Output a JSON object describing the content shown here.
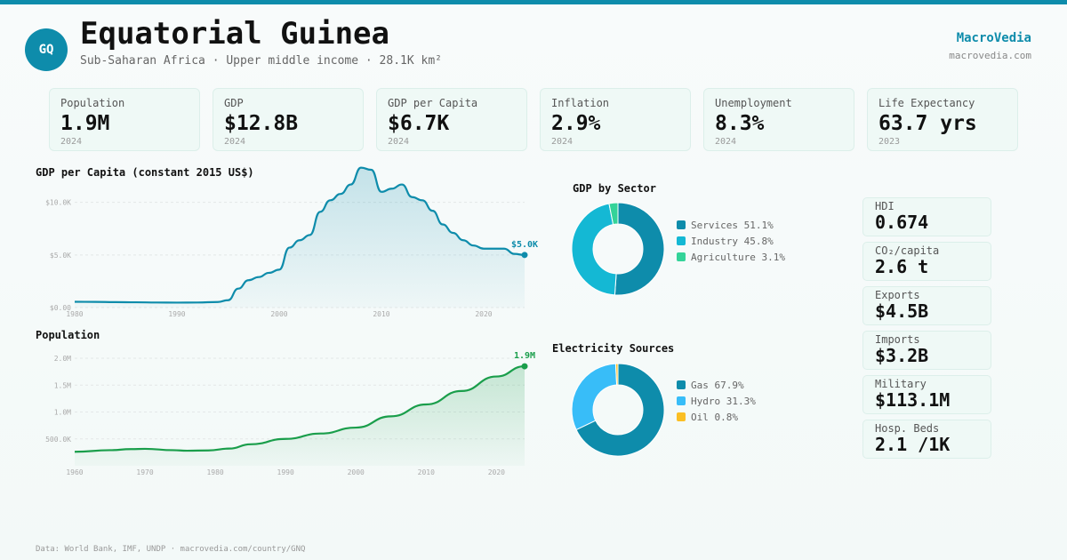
{
  "header": {
    "badge": "GQ",
    "title": "Equatorial Guinea",
    "subtitle": "Sub-Saharan Africa · Upper middle income · 28.1K km²",
    "brand": "MacroVedia",
    "brand_url": "macrovedia.com"
  },
  "kpis": [
    {
      "label": "Population",
      "value": "1.9M",
      "year": "2024"
    },
    {
      "label": "GDP",
      "value": "$12.8B",
      "year": "2024"
    },
    {
      "label": "GDP per Capita",
      "value": "$6.7K",
      "year": "2024"
    },
    {
      "label": "Inflation",
      "value": "2.9%",
      "year": "2024"
    },
    {
      "label": "Unemployment",
      "value": "8.3%",
      "year": "2024"
    },
    {
      "label": "Life Expectancy",
      "value": "63.7 yrs",
      "year": "2023"
    }
  ],
  "side_stats": [
    {
      "label": "HDI",
      "value": "0.674"
    },
    {
      "label": "CO₂/capita",
      "value": "2.6 t"
    },
    {
      "label": "Exports",
      "value": "$4.5B"
    },
    {
      "label": "Imports",
      "value": "$3.2B"
    },
    {
      "label": "Military",
      "value": "$113.1M"
    },
    {
      "label": "Hosp. Beds",
      "value": "2.1 /1K"
    }
  ],
  "colors": {
    "accent": "#0e8cab",
    "population": "#1a9e4b"
  },
  "footer": "Data: World Bank, IMF, UNDP · macrovedia.com/country/GNQ",
  "chart_data": [
    {
      "type": "area",
      "title": "GDP per Capita (constant 2015 US$)",
      "ylim": [
        0,
        12000
      ],
      "yticks": [
        0,
        5000,
        10000
      ],
      "ytick_labels": [
        "$0.00",
        "$5.0K",
        "$10.0K"
      ],
      "xlim": [
        1980,
        2024
      ],
      "xticks": [
        1980,
        1990,
        2000,
        2010,
        2020
      ],
      "end_label": "$5.0K",
      "color": "#0e8cab",
      "grid": true,
      "x": [
        1980,
        1982,
        1984,
        1986,
        1988,
        1990,
        1992,
        1994,
        1995,
        1996,
        1997,
        1998,
        1999,
        2000,
        2001,
        2002,
        2003,
        2004,
        2005,
        2006,
        2007,
        2008,
        2009,
        2010,
        2011,
        2012,
        2013,
        2014,
        2015,
        2016,
        2017,
        2018,
        2019,
        2020,
        2021,
        2022,
        2023,
        2024
      ],
      "values": [
        550,
        540,
        520,
        500,
        480,
        470,
        480,
        530,
        700,
        1800,
        2600,
        2900,
        3300,
        3600,
        5700,
        6400,
        6900,
        9100,
        10200,
        10800,
        11700,
        13300,
        13100,
        11000,
        11300,
        11700,
        10500,
        10200,
        9200,
        7900,
        7100,
        6400,
        5900,
        5600,
        5600,
        5600,
        5100,
        5000
      ]
    },
    {
      "type": "area",
      "title": "Population",
      "ylim": [
        0,
        2000000
      ],
      "yticks": [
        500000,
        1000000,
        1500000,
        2000000
      ],
      "ytick_labels": [
        "500.0K",
        "1.0M",
        "1.5M",
        "2.0M"
      ],
      "xlim": [
        1960,
        2024
      ],
      "xticks": [
        1960,
        1970,
        1980,
        1990,
        2000,
        2010,
        2020
      ],
      "end_label": "1.9M",
      "color": "#1a9e4b",
      "grid": true,
      "x": [
        1960,
        1965,
        1968,
        1970,
        1974,
        1976,
        1979,
        1982,
        1985,
        1990,
        1995,
        2000,
        2005,
        2010,
        2015,
        2020,
        2024
      ],
      "values": [
        260000,
        290000,
        310000,
        315000,
        290000,
        280000,
        285000,
        320000,
        400000,
        500000,
        600000,
        710000,
        920000,
        1140000,
        1390000,
        1660000,
        1850000
      ]
    },
    {
      "type": "pie",
      "title": "GDP by Sector",
      "labels": [
        "Services",
        "Industry",
        "Agriculture"
      ],
      "values": [
        51.1,
        45.8,
        3.1
      ],
      "legend": [
        "Services 51.1%",
        "Industry 45.8%",
        "Agriculture 3.1%"
      ],
      "colors": [
        "#0e8cab",
        "#14b8d4",
        "#34d399"
      ]
    },
    {
      "type": "pie",
      "title": "Electricity Sources",
      "labels": [
        "Gas",
        "Hydro",
        "Oil"
      ],
      "values": [
        67.9,
        31.3,
        0.8
      ],
      "legend": [
        "Gas 67.9%",
        "Hydro 31.3%",
        "Oil 0.8%"
      ],
      "colors": [
        "#0e8cab",
        "#38bdf8",
        "#fbbf24"
      ]
    }
  ]
}
